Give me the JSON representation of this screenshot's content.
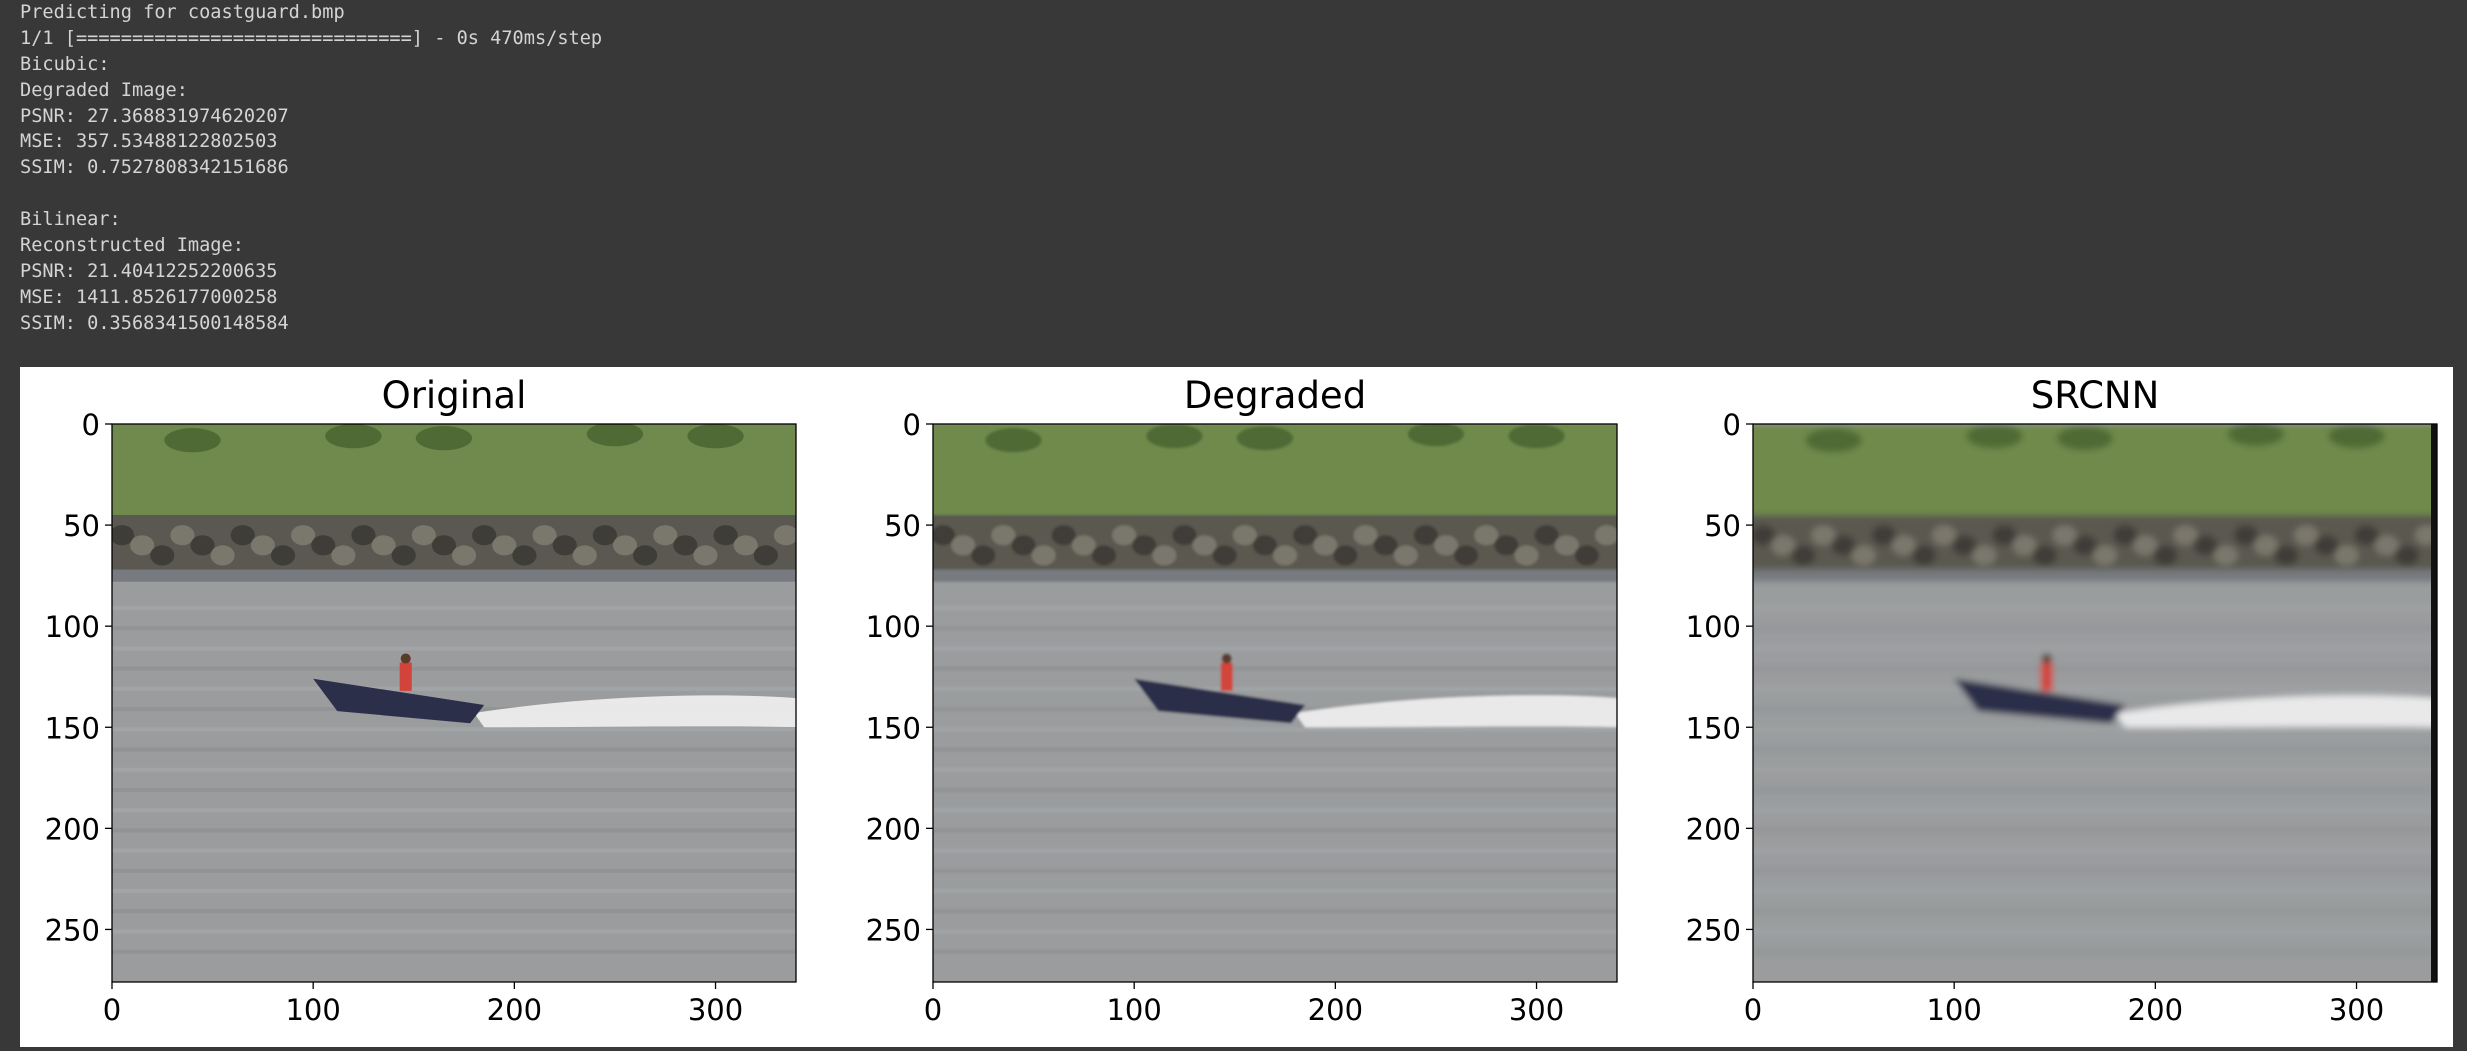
{
  "output": {
    "top_partial_line": "…….. ( ` )) ….. …… …_…… …….. ( ..( ) ……( ) ….. ( ..( )",
    "lines": [
      "Predicting for coastguard.bmp",
      "1/1 [==============================] - 0s 470ms/step",
      "Bicubic:",
      "Degraded Image:",
      "PSNR: 27.368831974620207",
      "MSE: 357.53488122802503",
      "SSIM: 0.7527808342151686",
      "",
      "Bilinear:",
      "Reconstructed Image:",
      "PSNR: 21.40412252200635",
      "MSE: 1411.8526177000258",
      "SSIM: 0.3568341500148584"
    ]
  },
  "figure": {
    "panels": [
      {
        "title": "Original",
        "variant": "sharp"
      },
      {
        "title": "Degraded",
        "variant": "soft"
      },
      {
        "title": "SRCNN",
        "variant": "blurred"
      }
    ],
    "x_ticks": [
      "0",
      "100",
      "200",
      "300"
    ],
    "y_ticks": [
      "0",
      "50",
      "100",
      "150",
      "200",
      "250"
    ],
    "image_width": 340,
    "image_height": 276,
    "colors": {
      "grass": "#6f8a4c",
      "grass_dark": "#4f6a35",
      "rocks": "#5a5850",
      "water": "#9a9c9e",
      "boat": "#2b2f4a",
      "wake": "#f2f2f2",
      "person": "#d2443b"
    }
  }
}
